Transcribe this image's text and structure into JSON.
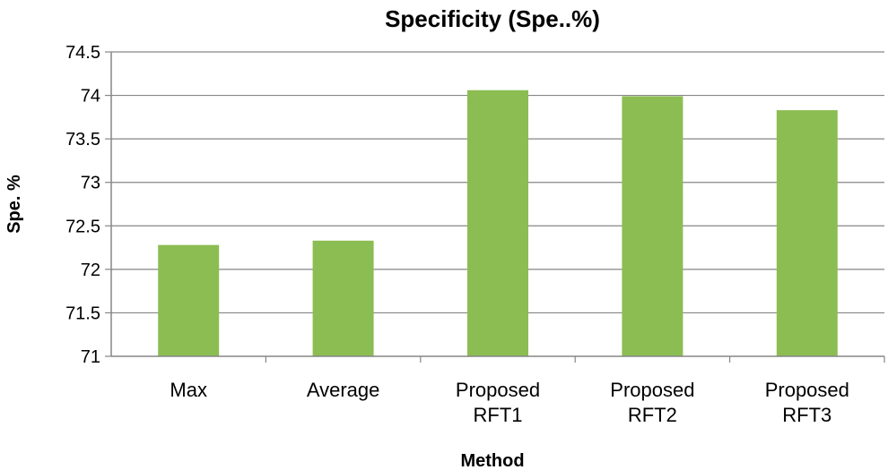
{
  "chart_data": {
    "type": "bar",
    "title": "Specificity (Spe..%)",
    "xlabel": "Method",
    "ylabel": "Spe. %",
    "ylim": [
      71,
      74.5
    ],
    "yticks": [
      "71",
      "71.5",
      "72",
      "72.5",
      "73",
      "73.5",
      "74",
      "74.5"
    ],
    "grid": true,
    "bar_color": "#8cbd52",
    "categories": [
      [
        "Max"
      ],
      [
        "Average"
      ],
      [
        "Proposed",
        "RFT1"
      ],
      [
        "Proposed",
        "RFT2"
      ],
      [
        "Proposed",
        "RFT3"
      ]
    ],
    "values": [
      72.28,
      72.33,
      74.06,
      73.99,
      73.83
    ]
  }
}
